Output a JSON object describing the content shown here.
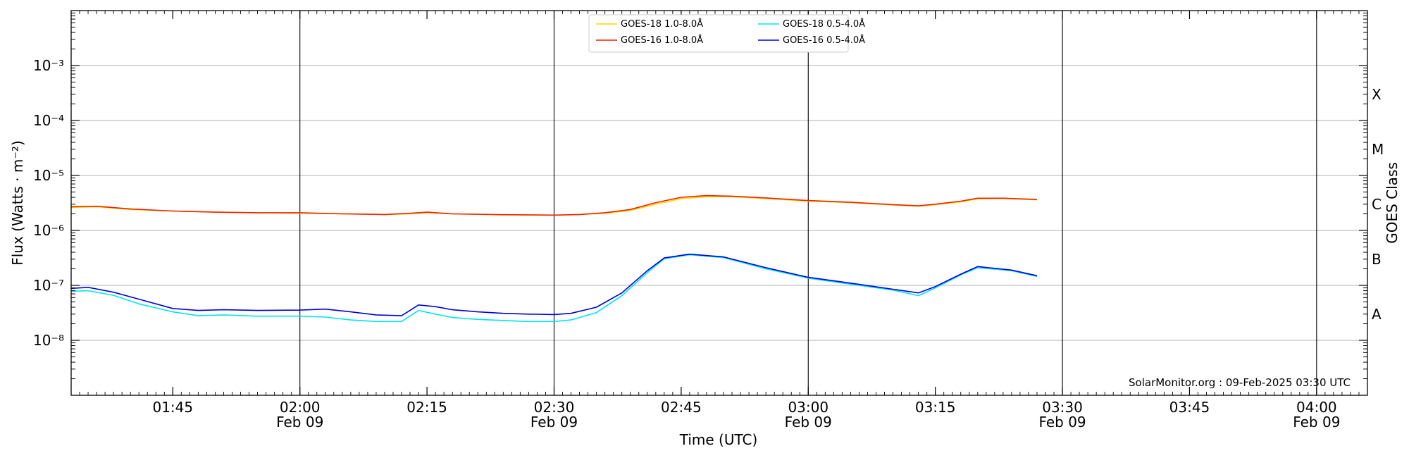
{
  "chart_data": {
    "type": "line",
    "title": "",
    "xlabel": "Time (UTC)",
    "ylabel": "Flux (Watts · m⁻²)",
    "y2label": "GOES Class",
    "yscale": "log",
    "ylim": [
      1e-09,
      0.01
    ],
    "xlim": [
      "2025-02-09T01:33",
      "2025-02-09T04:06"
    ],
    "grid": "horizontal",
    "legend_position": "top-center",
    "credit": "SolarMonitor.org : 09-Feb-2025 03:30 UTC",
    "y_ticks": [
      {
        "value": 1e-08,
        "label": "10⁻⁸"
      },
      {
        "value": 1e-07,
        "label": "10⁻⁷"
      },
      {
        "value": 1e-06,
        "label": "10⁻⁶"
      },
      {
        "value": 1e-05,
        "label": "10⁻⁵"
      },
      {
        "value": 0.0001,
        "label": "10⁻⁴"
      },
      {
        "value": 0.001,
        "label": "10⁻³"
      }
    ],
    "x_ticks": [
      {
        "time": "2025-02-09T01:45",
        "label": "01:45",
        "sublabel": "",
        "vline": false
      },
      {
        "time": "2025-02-09T02:00",
        "label": "02:00",
        "sublabel": "Feb 09",
        "vline": true
      },
      {
        "time": "2025-02-09T02:15",
        "label": "02:15",
        "sublabel": "",
        "vline": false
      },
      {
        "time": "2025-02-09T02:30",
        "label": "02:30",
        "sublabel": "Feb 09",
        "vline": true
      },
      {
        "time": "2025-02-09T02:45",
        "label": "02:45",
        "sublabel": "",
        "vline": false
      },
      {
        "time": "2025-02-09T03:00",
        "label": "03:00",
        "sublabel": "Feb 09",
        "vline": true
      },
      {
        "time": "2025-02-09T03:15",
        "label": "03:15",
        "sublabel": "",
        "vline": false
      },
      {
        "time": "2025-02-09T03:30",
        "label": "03:30",
        "sublabel": "Feb 09",
        "vline": true
      },
      {
        "time": "2025-02-09T03:45",
        "label": "03:45",
        "sublabel": "",
        "vline": false
      },
      {
        "time": "2025-02-09T04:00",
        "label": "04:00",
        "sublabel": "Feb 09",
        "vline": true
      }
    ],
    "goes_classes": [
      {
        "label": "X",
        "value": 0.0003
      },
      {
        "label": "M",
        "value": 3e-05
      },
      {
        "label": "C",
        "value": 3e-06
      },
      {
        "label": "B",
        "value": 3e-07
      },
      {
        "label": "A",
        "value": 3e-08
      }
    ],
    "legend": [
      {
        "label": "GOES-18 1.0-8.0Å",
        "color": "#ffd700"
      },
      {
        "label": "GOES-18 0.5-4.0Å",
        "color": "#00e5ee"
      },
      {
        "label": "GOES-16 1.0-8.0Å",
        "color": "#ee2200"
      },
      {
        "label": "GOES-16 0.5-4.0Å",
        "color": "#0000dd"
      }
    ],
    "series": [
      {
        "name": "GOES-18 1.0-8.0Å",
        "color": "#ffd700",
        "x": [
          "2025-02-09T01:33",
          "2025-02-09T01:36",
          "2025-02-09T01:40",
          "2025-02-09T01:45",
          "2025-02-09T01:50",
          "2025-02-09T01:55",
          "2025-02-09T02:00",
          "2025-02-09T02:05",
          "2025-02-09T02:10",
          "2025-02-09T02:13",
          "2025-02-09T02:15",
          "2025-02-09T02:18",
          "2025-02-09T02:24",
          "2025-02-09T02:30",
          "2025-02-09T02:33",
          "2025-02-09T02:36",
          "2025-02-09T02:39",
          "2025-02-09T02:42",
          "2025-02-09T02:45",
          "2025-02-09T02:48",
          "2025-02-09T02:51",
          "2025-02-09T02:55",
          "2025-02-09T03:00",
          "2025-02-09T03:05",
          "2025-02-09T03:10",
          "2025-02-09T03:13",
          "2025-02-09T03:15",
          "2025-02-09T03:18",
          "2025-02-09T03:20",
          "2025-02-09T03:23",
          "2025-02-09T03:27"
        ],
        "y": [
          2.6e-06,
          2.7e-06,
          2.4e-06,
          2.25e-06,
          2.15e-06,
          2.1e-06,
          2.05e-06,
          2e-06,
          1.95e-06,
          2e-06,
          2.1e-06,
          2e-06,
          1.92e-06,
          1.9e-06,
          1.95e-06,
          2.05e-06,
          2.3e-06,
          3e-06,
          3.8e-06,
          4.1e-06,
          4.1e-06,
          3.8e-06,
          3.4e-06,
          3.2e-06,
          2.9e-06,
          2.75e-06,
          2.95e-06,
          3.3e-06,
          3.75e-06,
          3.8e-06,
          3.6e-06
        ]
      },
      {
        "name": "GOES-16 1.0-8.0Å",
        "color": "#ee2200",
        "x": [
          "2025-02-09T01:33",
          "2025-02-09T01:36",
          "2025-02-09T01:40",
          "2025-02-09T01:45",
          "2025-02-09T01:50",
          "2025-02-09T01:55",
          "2025-02-09T02:00",
          "2025-02-09T02:05",
          "2025-02-09T02:10",
          "2025-02-09T02:13",
          "2025-02-09T02:15",
          "2025-02-09T02:18",
          "2025-02-09T02:24",
          "2025-02-09T02:30",
          "2025-02-09T02:33",
          "2025-02-09T02:36",
          "2025-02-09T02:39",
          "2025-02-09T02:42",
          "2025-02-09T02:45",
          "2025-02-09T02:48",
          "2025-02-09T02:51",
          "2025-02-09T02:55",
          "2025-02-09T03:00",
          "2025-02-09T03:05",
          "2025-02-09T03:10",
          "2025-02-09T03:13",
          "2025-02-09T03:15",
          "2025-02-09T03:18",
          "2025-02-09T03:20",
          "2025-02-09T03:23",
          "2025-02-09T03:27"
        ],
        "y": [
          2.7e-06,
          2.75e-06,
          2.45e-06,
          2.25e-06,
          2.15e-06,
          2.1e-06,
          2.1e-06,
          2e-06,
          1.95e-06,
          2.05e-06,
          2.15e-06,
          2e-06,
          1.93e-06,
          1.9e-06,
          1.95e-06,
          2.1e-06,
          2.4e-06,
          3.2e-06,
          4e-06,
          4.3e-06,
          4.2e-06,
          3.9e-06,
          3.5e-06,
          3.25e-06,
          2.95e-06,
          2.8e-06,
          3e-06,
          3.4e-06,
          3.85e-06,
          3.85e-06,
          3.65e-06
        ]
      },
      {
        "name": "GOES-18 0.5-4.0Å",
        "color": "#00e5ee",
        "x": [
          "2025-02-09T01:33",
          "2025-02-09T01:35",
          "2025-02-09T01:38",
          "2025-02-09T01:41",
          "2025-02-09T01:45",
          "2025-02-09T01:48",
          "2025-02-09T01:51",
          "2025-02-09T01:55",
          "2025-02-09T02:00",
          "2025-02-09T02:03",
          "2025-02-09T02:06",
          "2025-02-09T02:09",
          "2025-02-09T02:12",
          "2025-02-09T02:14",
          "2025-02-09T02:16",
          "2025-02-09T02:18",
          "2025-02-09T02:21",
          "2025-02-09T02:24",
          "2025-02-09T02:27",
          "2025-02-09T02:30",
          "2025-02-09T02:32",
          "2025-02-09T02:35",
          "2025-02-09T02:38",
          "2025-02-09T02:41",
          "2025-02-09T02:43",
          "2025-02-09T02:46",
          "2025-02-09T02:50",
          "2025-02-09T02:55",
          "2025-02-09T03:00",
          "2025-02-09T03:05",
          "2025-02-09T03:10",
          "2025-02-09T03:13",
          "2025-02-09T03:15",
          "2025-02-09T03:18",
          "2025-02-09T03:20",
          "2025-02-09T03:24",
          "2025-02-09T03:27"
        ],
        "y": [
          7.8e-08,
          8e-08,
          6.6e-08,
          4.6e-08,
          3.3e-08,
          2.8e-08,
          2.9e-08,
          2.75e-08,
          2.75e-08,
          2.65e-08,
          2.35e-08,
          2.2e-08,
          2.2e-08,
          3.5e-08,
          3e-08,
          2.6e-08,
          2.4e-08,
          2.3e-08,
          2.2e-08,
          2.2e-08,
          2.35e-08,
          3.2e-08,
          6.5e-08,
          1.7e-07,
          3.05e-07,
          3.6e-07,
          3.2e-07,
          2e-07,
          1.35e-07,
          1.05e-07,
          8.2e-08,
          6.5e-08,
          9e-08,
          1.55e-07,
          2.1e-07,
          1.85e-07,
          1.45e-07
        ]
      },
      {
        "name": "GOES-16 0.5-4.0Å",
        "color": "#0000dd",
        "x": [
          "2025-02-09T01:33",
          "2025-02-09T01:35",
          "2025-02-09T01:38",
          "2025-02-09T01:41",
          "2025-02-09T01:45",
          "2025-02-09T01:48",
          "2025-02-09T01:51",
          "2025-02-09T01:55",
          "2025-02-09T02:00",
          "2025-02-09T02:03",
          "2025-02-09T02:06",
          "2025-02-09T02:09",
          "2025-02-09T02:12",
          "2025-02-09T02:14",
          "2025-02-09T02:16",
          "2025-02-09T02:18",
          "2025-02-09T02:21",
          "2025-02-09T02:24",
          "2025-02-09T02:27",
          "2025-02-09T02:30",
          "2025-02-09T02:32",
          "2025-02-09T02:35",
          "2025-02-09T02:38",
          "2025-02-09T02:41",
          "2025-02-09T02:43",
          "2025-02-09T02:46",
          "2025-02-09T02:50",
          "2025-02-09T02:55",
          "2025-02-09T03:00",
          "2025-02-09T03:05",
          "2025-02-09T03:10",
          "2025-02-09T03:13",
          "2025-02-09T03:15",
          "2025-02-09T03:18",
          "2025-02-09T03:20",
          "2025-02-09T03:24",
          "2025-02-09T03:27"
        ],
        "y": [
          8.8e-08,
          9.2e-08,
          7.5e-08,
          5.6e-08,
          3.8e-08,
          3.5e-08,
          3.6e-08,
          3.5e-08,
          3.55e-08,
          3.7e-08,
          3.3e-08,
          2.9e-08,
          2.8e-08,
          4.4e-08,
          4.1e-08,
          3.6e-08,
          3.3e-08,
          3.1e-08,
          3e-08,
          2.95e-08,
          3.1e-08,
          4e-08,
          7.3e-08,
          1.85e-07,
          3.15e-07,
          3.7e-07,
          3.3e-07,
          2.1e-07,
          1.4e-07,
          1.1e-07,
          8.5e-08,
          7.3e-08,
          9.5e-08,
          1.6e-07,
          2.2e-07,
          1.9e-07,
          1.5e-07
        ]
      }
    ]
  }
}
